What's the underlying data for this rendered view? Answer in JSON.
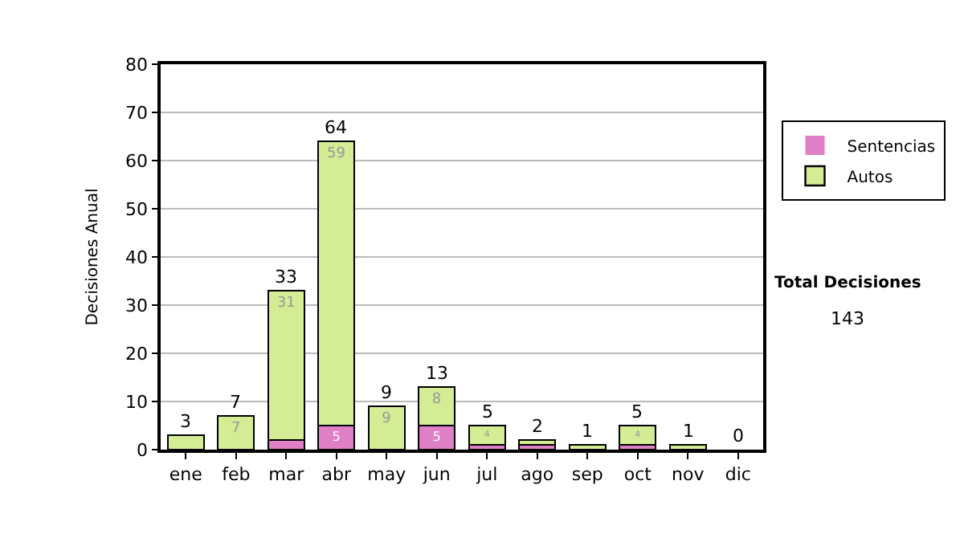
{
  "chart_data": {
    "type": "bar",
    "stacked": true,
    "ylabel": "Decisiones Anual",
    "categories": [
      "ene",
      "feb",
      "mar",
      "abr",
      "may",
      "jun",
      "jul",
      "ago",
      "sep",
      "oct",
      "nov",
      "dic"
    ],
    "series": [
      {
        "name": "Sentencias",
        "color": "#df7fc6",
        "values": [
          0,
          0,
          2,
          5,
          0,
          5,
          1,
          1,
          0,
          1,
          0,
          0
        ],
        "value_labels": [
          null,
          null,
          null,
          "5",
          null,
          "5",
          null,
          null,
          null,
          null,
          null,
          null
        ]
      },
      {
        "name": "Autos",
        "color": "#d4ec94",
        "values": [
          3,
          7,
          31,
          59,
          9,
          8,
          4,
          1,
          1,
          4,
          1,
          0
        ],
        "value_labels": [
          null,
          "7",
          "31",
          "59",
          "9",
          "8",
          "4",
          null,
          null,
          "4",
          null,
          null
        ]
      }
    ],
    "totals": [
      "3",
      "7",
      "33",
      "64",
      "9",
      "13",
      "5",
      "2",
      "1",
      "5",
      "1",
      "0"
    ],
    "ylim": [
      0,
      80
    ],
    "yticks": [
      0,
      10,
      20,
      30,
      40,
      50,
      60,
      70,
      80
    ],
    "grid": "y",
    "legend": "right",
    "annotations": [
      "Total Decisiones",
      "143"
    ]
  }
}
